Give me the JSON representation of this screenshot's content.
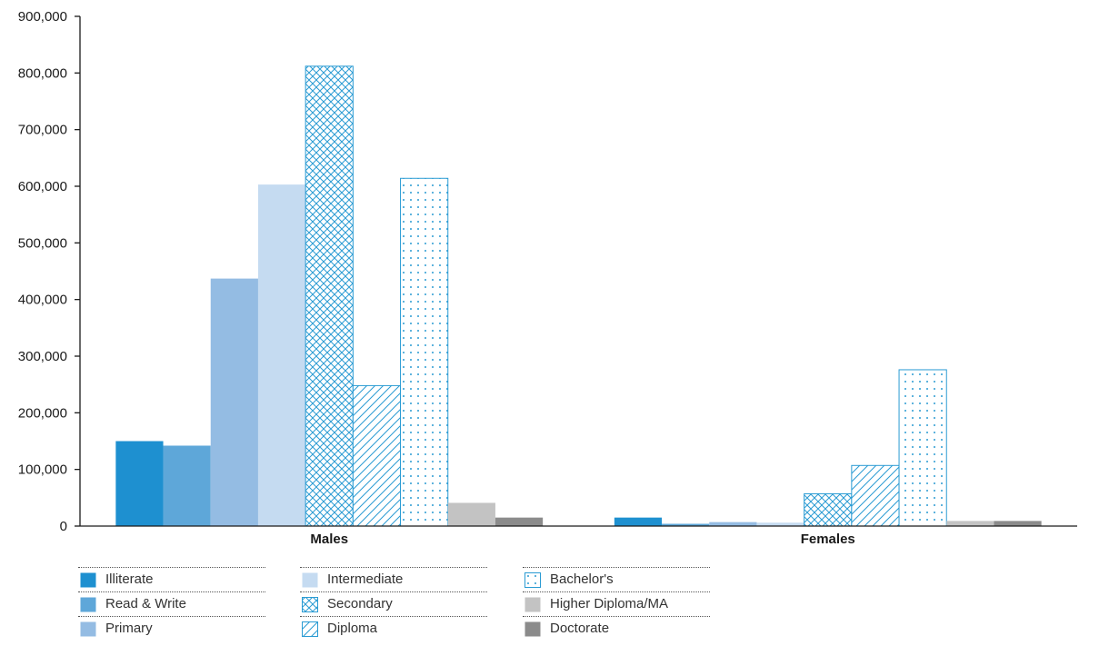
{
  "chart_data": {
    "type": "bar",
    "categories": [
      "Males",
      "Females"
    ],
    "series": [
      {
        "name": "Illiterate",
        "values": [
          150000,
          15000
        ],
        "color": "#1e90d0",
        "pattern": "solid"
      },
      {
        "name": "Read & Write",
        "values": [
          142000,
          4000
        ],
        "color": "#5ea7d9",
        "pattern": "solid"
      },
      {
        "name": "Primary",
        "values": [
          437000,
          7000
        ],
        "color": "#94bce3",
        "pattern": "solid"
      },
      {
        "name": "Intermediate",
        "values": [
          603000,
          6000
        ],
        "color": "#c5dbf1",
        "pattern": "solid"
      },
      {
        "name": "Secondary",
        "values": [
          812000,
          57000
        ],
        "color": "#2a9bd3",
        "pattern": "crosshatch"
      },
      {
        "name": "Diploma",
        "values": [
          248000,
          107000
        ],
        "color": "#2a9bd3",
        "pattern": "diagonal"
      },
      {
        "name": "Bachelor's",
        "values": [
          614000,
          276000
        ],
        "color": "#2a9bd3",
        "pattern": "dots"
      },
      {
        "name": "Higher Diploma/MA",
        "values": [
          41000,
          9000
        ],
        "color": "#c3c3c3",
        "pattern": "solid"
      },
      {
        "name": "Doctorate",
        "values": [
          15000,
          9000
        ],
        "color": "#8b8b8b",
        "pattern": "solid"
      }
    ],
    "yticks": [
      0,
      100000,
      200000,
      300000,
      400000,
      500000,
      600000,
      700000,
      800000,
      900000
    ],
    "ytick_labels": [
      "0",
      "100,000",
      "200,000",
      "300,000",
      "400,000",
      "500,000",
      "600,000",
      "700,000",
      "800,000",
      "900,000"
    ],
    "ylim": [
      0,
      900000
    ],
    "grid": false,
    "legend_position": "bottom"
  }
}
